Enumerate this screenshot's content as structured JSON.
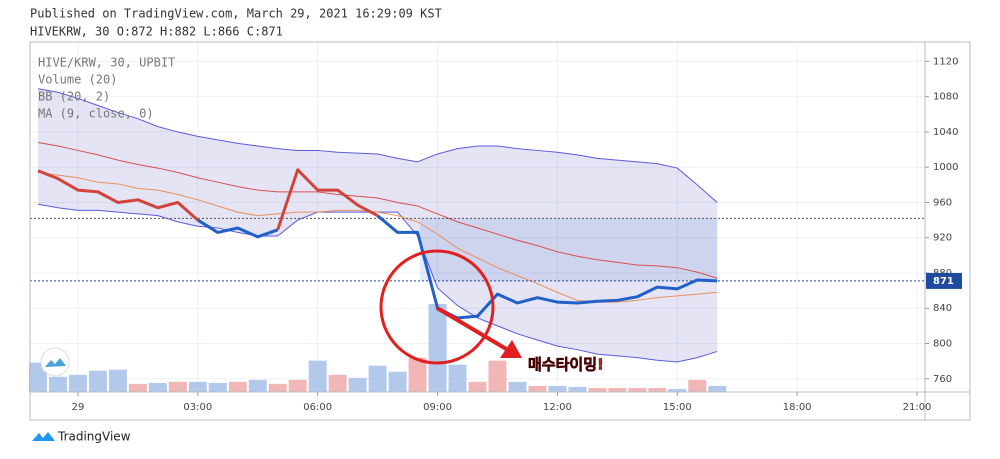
{
  "chart_data": {
    "type": "line",
    "title": "Published on TradingView.com, March 29, 2021 16:29:09 KST",
    "subtitle": "HIVEKRW, 30 O:872 H:882 L:866 C:871",
    "legend": [
      "HIVE/KRW, 30, UPBIT",
      "Volume (20)",
      "BB (20, 2)",
      "MA (9, close, 0)"
    ],
    "x": [
      -1,
      -0.5,
      0,
      0.5,
      1,
      1.5,
      2,
      2.5,
      3,
      3.5,
      4,
      4.5,
      5,
      5.5,
      6,
      6.5,
      7,
      7.5,
      8,
      8.5,
      9,
      9.5,
      10,
      10.5,
      11,
      11.5,
      12,
      12.5,
      13,
      13.5,
      14,
      14.5,
      15,
      15.5,
      16
    ],
    "xlim": [
      -1.2,
      21.2
    ],
    "xticks": [
      {
        "value": 0,
        "label": "29"
      },
      {
        "value": 3,
        "label": "03:00"
      },
      {
        "value": 6,
        "label": "06:00"
      },
      {
        "value": 9,
        "label": "09:00"
      },
      {
        "value": 12,
        "label": "12:00"
      },
      {
        "value": 15,
        "label": "15:00"
      },
      {
        "value": 18,
        "label": "18:00"
      },
      {
        "value": 21,
        "label": "21:00"
      }
    ],
    "ylim": [
      745,
      1142
    ],
    "yticks": [
      760,
      800,
      840,
      880,
      920,
      960,
      1000,
      1040,
      1080,
      1120
    ],
    "grid": true,
    "close": {
      "values": [
        996,
        987,
        974,
        972,
        960,
        963,
        954,
        960,
        940,
        926,
        931,
        921,
        929,
        997,
        974,
        974,
        957,
        945,
        926,
        926,
        840,
        829,
        831,
        856,
        846,
        852,
        847,
        846,
        848,
        849,
        853,
        864,
        862,
        872,
        871
      ],
      "colors": [
        "#d0443c",
        "#d0443c",
        "#d0443c",
        "#d0443c",
        "#d0443c",
        "#d0443c",
        "#d0443c",
        "#d0443c",
        "#d0443c",
        "#2060c8",
        "#2060c8",
        "#2060c8",
        "#2060c8",
        "#d0443c",
        "#d0443c",
        "#d0443c",
        "#d0443c",
        "#d0443c",
        "#2060c8",
        "#2060c8",
        "#2060c8",
        "#2060c8",
        "#2060c8",
        "#2060c8",
        "#2060c8",
        "#2060c8",
        "#2060c8",
        "#2060c8",
        "#2060c8",
        "#2060c8",
        "#2060c8",
        "#2060c8",
        "#2060c8",
        "#2060c8",
        "#2060c8"
      ]
    },
    "series": [
      {
        "name": "BB upper",
        "color": "#5b5bdf",
        "values": [
          1089,
          1085,
          1078,
          1070,
          1062,
          1055,
          1046,
          1040,
          1035,
          1031,
          1027,
          1024,
          1021,
          1019,
          1019,
          1017,
          1016,
          1015,
          1010,
          1006,
          1015,
          1021,
          1024,
          1024,
          1021,
          1019,
          1017,
          1014,
          1010,
          1008,
          1006,
          1004,
          999,
          980,
          960
        ]
      },
      {
        "name": "BB lower",
        "color": "#5b5bdf",
        "values": [
          958,
          954,
          951,
          951,
          949,
          947,
          945,
          938,
          933,
          931,
          926,
          922,
          922,
          940,
          949,
          949,
          949,
          949,
          949,
          922,
          863,
          843,
          829,
          820,
          811,
          804,
          797,
          793,
          788,
          786,
          784,
          781,
          779,
          784,
          791
        ]
      },
      {
        "name": "BB basis",
        "color": "#d85050",
        "values": [
          1028,
          1024,
          1019,
          1014,
          1008,
          1003,
          999,
          994,
          988,
          983,
          978,
          974,
          972,
          972,
          972,
          969,
          967,
          965,
          960,
          956,
          947,
          938,
          931,
          924,
          917,
          911,
          904,
          899,
          895,
          892,
          889,
          888,
          886,
          881,
          874
        ]
      },
      {
        "name": "MA",
        "color": "#e8905a",
        "values": [
          994,
          991,
          988,
          983,
          981,
          976,
          974,
          969,
          963,
          956,
          949,
          945,
          947,
          949,
          949,
          951,
          951,
          949,
          945,
          938,
          924,
          908,
          897,
          886,
          877,
          868,
          858,
          849,
          847,
          847,
          849,
          852,
          854,
          856,
          858
        ]
      }
    ],
    "band_fill": "#7878c8",
    "volume": {
      "values": [
        29,
        15,
        17,
        21,
        22,
        8,
        9,
        10,
        10,
        9,
        10,
        12,
        8,
        12,
        31,
        17,
        14,
        26,
        20,
        34,
        87,
        27,
        10,
        31,
        10,
        6,
        6,
        5,
        4,
        4,
        4,
        4,
        3,
        12,
        6
      ],
      "up_color": "#eeaaaa",
      "down_color": "#a6c0e8"
    },
    "hlines": [
      {
        "value": 942,
        "color": "#555"
      },
      {
        "value": 871,
        "color": "#1f4aa0"
      }
    ],
    "last_price": 871,
    "annotation": "매수타이밍!",
    "brand": "TradingView"
  }
}
